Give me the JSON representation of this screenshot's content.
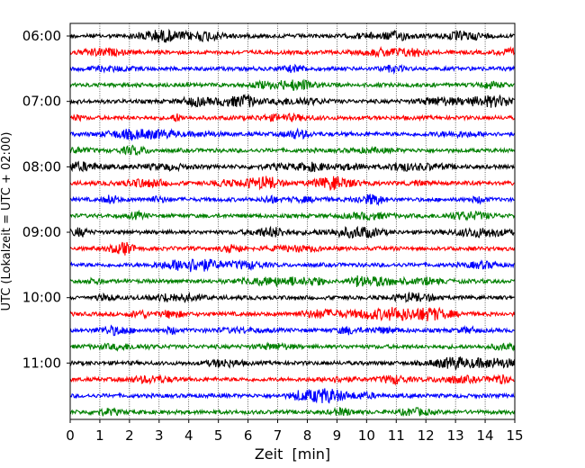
{
  "chart_data": {
    "type": "line",
    "title": "",
    "xlabel": "Zeit  [min]",
    "ylabel": "UTC (Lokalzeit = UTC + 02:00)",
    "xlim": [
      0,
      15
    ],
    "x_ticks": [
      0,
      1,
      2,
      3,
      4,
      5,
      6,
      7,
      8,
      9,
      10,
      11,
      12,
      13,
      14,
      15
    ],
    "x_tick_labels": [
      "0",
      "1",
      "2",
      "3",
      "4",
      "5",
      "6",
      "7",
      "8",
      "9",
      "10",
      "11",
      "12",
      "13",
      "14",
      "15"
    ],
    "y_tick_labels": [
      "06:00",
      "07:00",
      "08:00",
      "09:00",
      "10:00",
      "11:00"
    ],
    "row_interval_minutes": 15,
    "first_row": "06:00",
    "row_count": 24,
    "color_cycle": [
      "#000000",
      "#ff0000",
      "#0000ff",
      "#008000"
    ],
    "grid": "vertical dotted lines at each minute",
    "series": [
      {
        "start": "06:00",
        "color": "#000000"
      },
      {
        "start": "06:15",
        "color": "#ff0000"
      },
      {
        "start": "06:30",
        "color": "#0000ff"
      },
      {
        "start": "06:45",
        "color": "#008000"
      },
      {
        "start": "07:00",
        "color": "#000000"
      },
      {
        "start": "07:15",
        "color": "#ff0000"
      },
      {
        "start": "07:30",
        "color": "#0000ff"
      },
      {
        "start": "07:45",
        "color": "#008000"
      },
      {
        "start": "08:00",
        "color": "#000000"
      },
      {
        "start": "08:15",
        "color": "#ff0000"
      },
      {
        "start": "08:30",
        "color": "#0000ff"
      },
      {
        "start": "08:45",
        "color": "#008000"
      },
      {
        "start": "09:00",
        "color": "#000000"
      },
      {
        "start": "09:15",
        "color": "#ff0000"
      },
      {
        "start": "09:30",
        "color": "#0000ff"
      },
      {
        "start": "09:45",
        "color": "#008000"
      },
      {
        "start": "10:00",
        "color": "#000000"
      },
      {
        "start": "10:15",
        "color": "#ff0000"
      },
      {
        "start": "10:30",
        "color": "#0000ff"
      },
      {
        "start": "10:45",
        "color": "#008000"
      },
      {
        "start": "11:00",
        "color": "#000000"
      },
      {
        "start": "11:15",
        "color": "#ff0000"
      },
      {
        "start": "11:30",
        "color": "#0000ff"
      },
      {
        "start": "11:45",
        "color": "#008000"
      }
    ]
  }
}
